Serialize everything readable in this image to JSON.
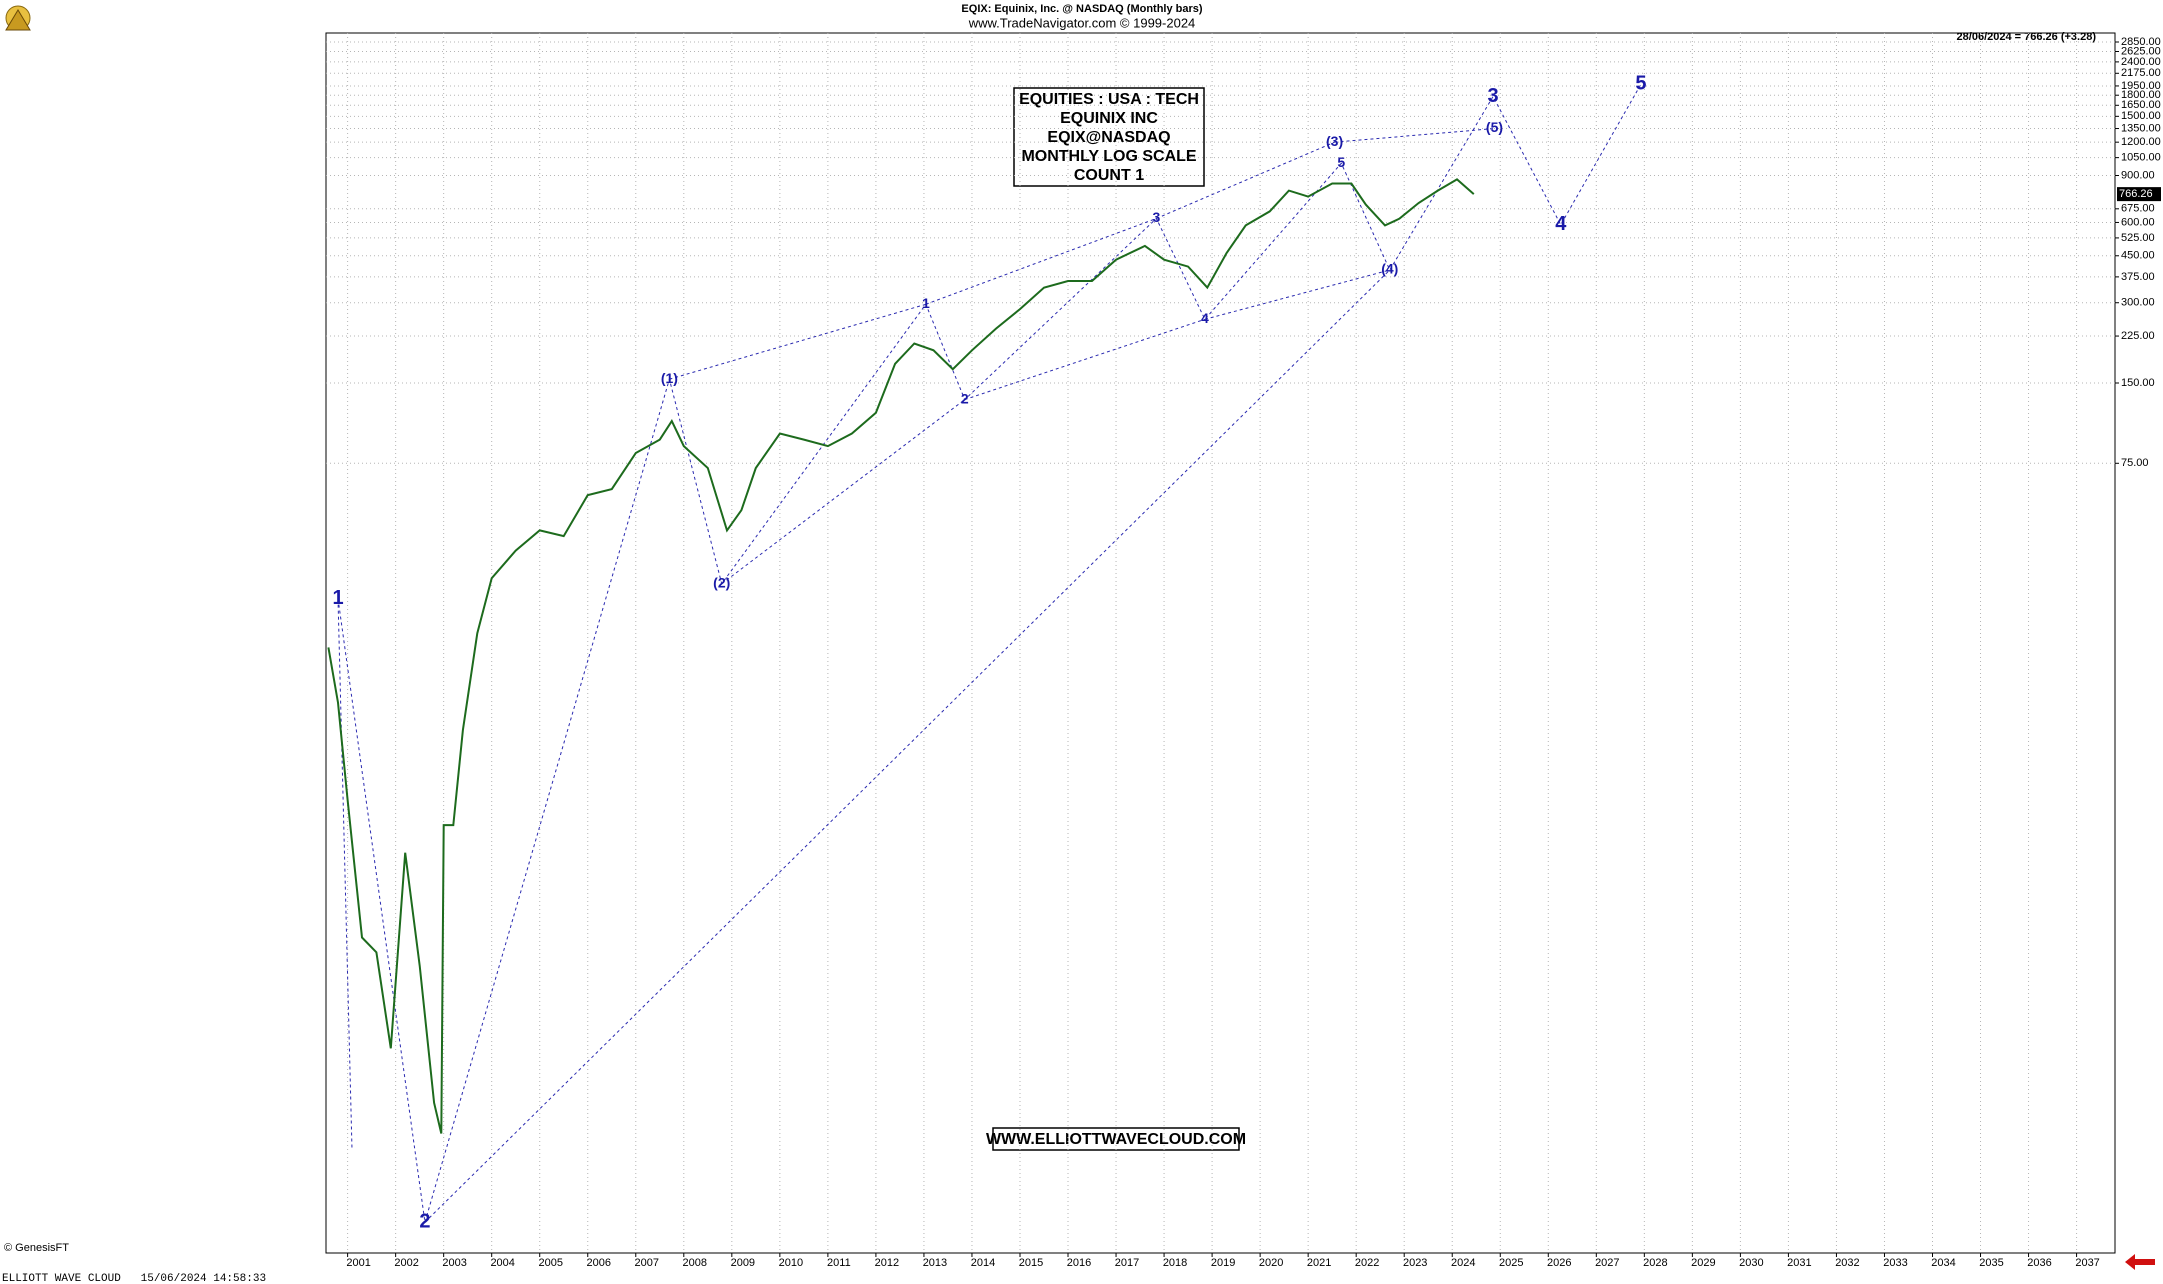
{
  "chart_data": {
    "type": "line",
    "title": "EQIX:  Equinix, Inc. @ NASDAQ  (Monthly bars)",
    "subtitle": "www.TradeNavigator.com © 1999-2024",
    "info_box": [
      "EQUITIES : USA : TECH",
      "EQUINIX INC",
      "EQIX@NASDAQ",
      "MONTHLY LOG SCALE",
      "COUNT 1"
    ],
    "watermark": "WWW.ELLIOTTWAVECLOUD.COM",
    "price_note": "28/06/2024 = 766.26 (+3.28)",
    "copyright": "© GenesisFT",
    "footer": "ELLIOTT WAVE CLOUD   15/06/2024 14:58:33",
    "color": "#1d6b1d",
    "log_scale": true,
    "grid": true,
    "x": [
      2000.6,
      2000.8,
      2001.0,
      2001.3,
      2001.6,
      2001.9,
      2002.2,
      2002.5,
      2002.8,
      2002.95,
      2003.0,
      2003.2,
      2003.4,
      2003.7,
      2004.0,
      2004.5,
      2005.0,
      2005.5,
      2006.0,
      2006.5,
      2007.0,
      2007.5,
      2007.75,
      2008.0,
      2008.5,
      2008.9,
      2009.2,
      2009.5,
      2010.0,
      2010.5,
      2011.0,
      2011.5,
      2012.0,
      2012.4,
      2012.8,
      2013.2,
      2013.6,
      2014.0,
      2014.5,
      2015.0,
      2015.5,
      2016.0,
      2016.5,
      2017.0,
      2017.6,
      2018.0,
      2018.5,
      2018.9,
      2019.3,
      2019.7,
      2020.2,
      2020.6,
      2021.0,
      2021.5,
      2021.9,
      2022.2,
      2022.6,
      2022.9,
      2023.3,
      2023.7,
      2024.1,
      2024.45
    ],
    "values": [
      15.3,
      9.5,
      4.1,
      1.25,
      1.1,
      0.48,
      2.6,
      0.98,
      0.3,
      0.23,
      3.3,
      3.3,
      7.5,
      17.3,
      27.8,
      35.3,
      42,
      40,
      57,
      60,
      82,
      92,
      108,
      87,
      72,
      42,
      50,
      72,
      97,
      92,
      87,
      97,
      116,
      177,
      211,
      199,
      169,
      199,
      240,
      284,
      342,
      362,
      362,
      435,
      490,
      435,
      410,
      342,
      460,
      585,
      660,
      790,
      750,
      840,
      840,
      700,
      585,
      620,
      710,
      790,
      870,
      766.26
    ],
    "annotations": [
      {
        "text": "1",
        "x": 2000.8,
        "y": 23.3,
        "size": "big"
      },
      {
        "text": "2",
        "x": 2002.61,
        "y": 0.107,
        "size": "big"
      },
      {
        "text": "(1)",
        "x": 2007.7,
        "y": 155,
        "size": "small"
      },
      {
        "text": "(2)",
        "x": 2008.79,
        "y": 26.5,
        "size": "small"
      },
      {
        "text": "1",
        "x": 2013.04,
        "y": 296,
        "size": "small"
      },
      {
        "text": "2",
        "x": 2013.85,
        "y": 130,
        "size": "small"
      },
      {
        "text": "3",
        "x": 2017.84,
        "y": 621,
        "size": "small"
      },
      {
        "text": "4",
        "x": 2018.85,
        "y": 260,
        "size": "small"
      },
      {
        "text": "(3)",
        "x": 2021.55,
        "y": 1200,
        "size": "small"
      },
      {
        "text": "5",
        "x": 2021.69,
        "y": 1000,
        "size": "small"
      },
      {
        "text": "(4)",
        "x": 2022.7,
        "y": 398,
        "size": "small"
      },
      {
        "text": "(5)",
        "x": 2024.88,
        "y": 1350,
        "size": "small"
      },
      {
        "text": "3",
        "x": 2024.85,
        "y": 1780,
        "size": "big"
      },
      {
        "text": "4",
        "x": 2026.26,
        "y": 588,
        "size": "big"
      },
      {
        "text": "5",
        "x": 2027.93,
        "y": 1980,
        "size": "big"
      }
    ],
    "xlim": [
      2000.55,
      2037.8
    ],
    "xticks": [
      2001,
      2002,
      2003,
      2004,
      2005,
      2006,
      2007,
      2008,
      2009,
      2010,
      2011,
      2012,
      2013,
      2014,
      2015,
      2016,
      2017,
      2018,
      2019,
      2020,
      2021,
      2022,
      2023,
      2024,
      2025,
      2026,
      2027,
      2028,
      2029,
      2030,
      2031,
      2032,
      2033,
      2034,
      2035,
      2036,
      2037
    ],
    "ylim": [
      0.082,
      3080
    ],
    "yticks": [
      {
        "value": 2850,
        "label": "2850.00"
      },
      {
        "value": 2625,
        "label": "2625.00"
      },
      {
        "value": 2400,
        "label": "2400.00"
      },
      {
        "value": 2175,
        "label": "2175.00"
      },
      {
        "value": 1950,
        "label": "1950.00"
      },
      {
        "value": 1800,
        "label": "1800.00"
      },
      {
        "value": 1650,
        "label": "1650.00"
      },
      {
        "value": 1500,
        "label": "1500.00"
      },
      {
        "value": 1350,
        "label": "1350.00"
      },
      {
        "value": 1200,
        "label": "1200.00"
      },
      {
        "value": 1050,
        "label": "1050.00"
      },
      {
        "value": 900,
        "label": "900.00"
      },
      {
        "value": 675,
        "label": "675.00"
      },
      {
        "value": 600,
        "label": "600.00"
      },
      {
        "value": 525,
        "label": "525.00"
      },
      {
        "value": 450,
        "label": "450.00"
      },
      {
        "value": 375,
        "label": "375.00"
      },
      {
        "value": 300,
        "label": "300.00"
      },
      {
        "value": 225,
        "label": "225.00"
      },
      {
        "value": 150,
        "label": "150.00"
      },
      {
        "value": 75,
        "label": "75.00"
      }
    ]
  }
}
